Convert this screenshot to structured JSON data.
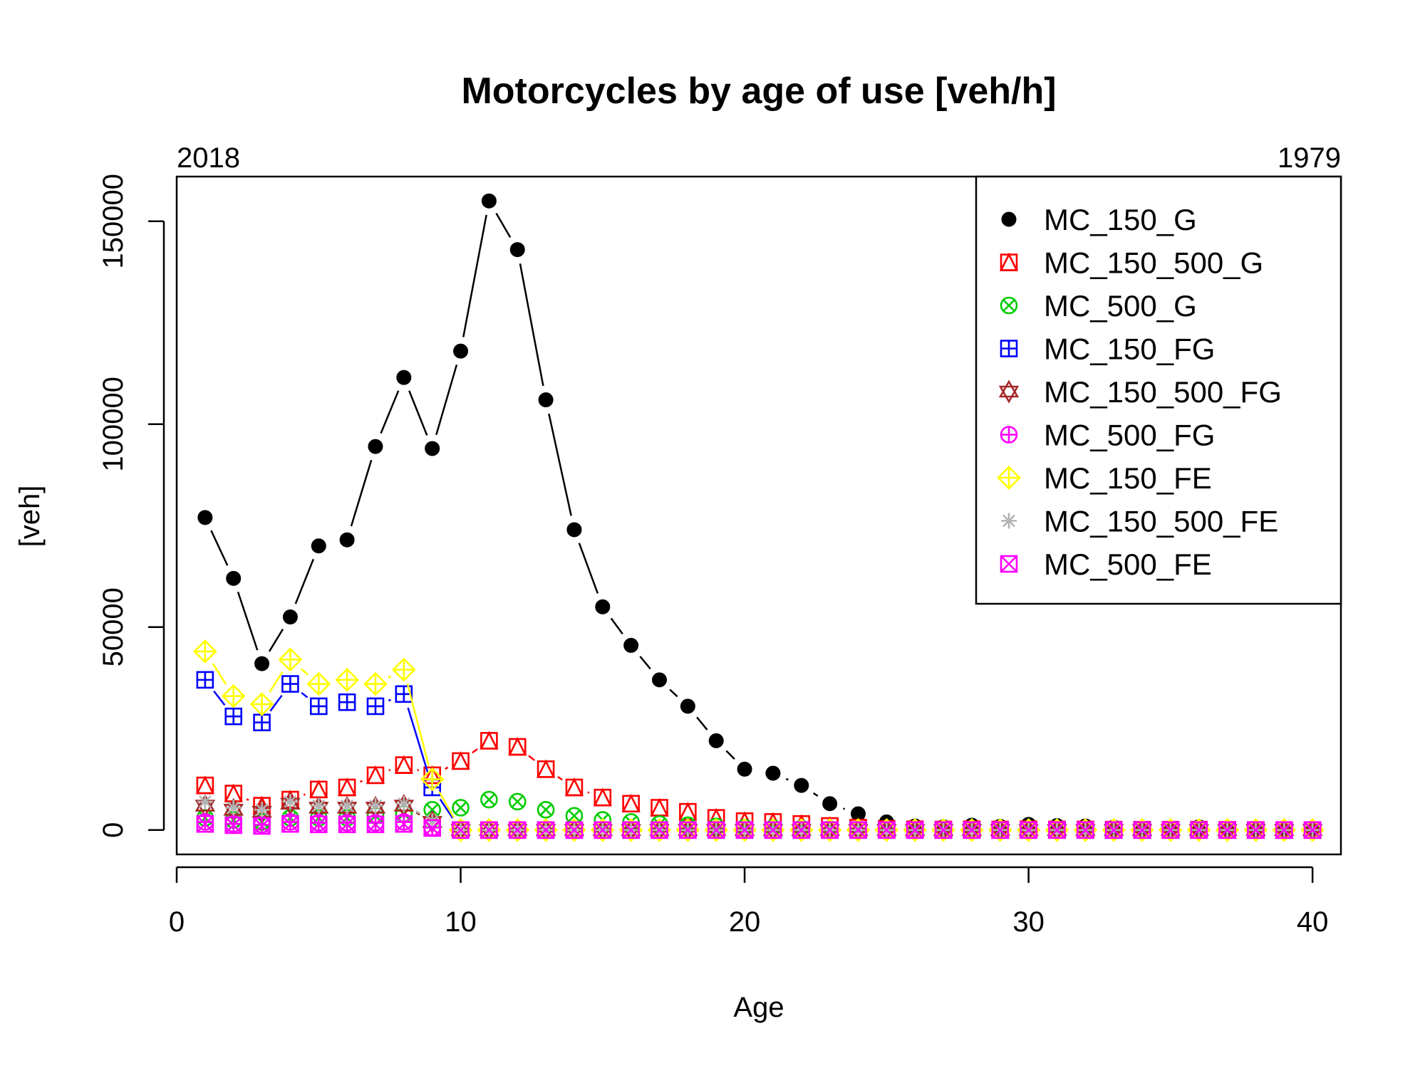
{
  "chart_data": {
    "type": "scatter",
    "title": "Motorcycles by age of use [veh/h]",
    "xlabel": "Age",
    "ylabel": "[veh]",
    "top_left_label": "2018",
    "top_right_label": "1979",
    "xlim": [
      0,
      41
    ],
    "ylim": [
      -6000,
      161000
    ],
    "xticks": [
      0,
      10,
      20,
      30,
      40
    ],
    "yticks": [
      0,
      50000,
      100000,
      150000
    ],
    "legend_position": "top-right",
    "x": [
      1,
      2,
      3,
      4,
      5,
      6,
      7,
      8,
      9,
      10,
      11,
      12,
      13,
      14,
      15,
      16,
      17,
      18,
      19,
      20,
      21,
      22,
      23,
      24,
      25,
      26,
      27,
      28,
      29,
      30,
      31,
      32,
      33,
      34,
      35,
      36,
      37,
      38,
      39,
      40
    ],
    "series": [
      {
        "name": "MC_150_G",
        "color": "#000000",
        "marker": "filled-circle",
        "values": [
          77000,
          62000,
          41000,
          52500,
          70000,
          71500,
          94500,
          111500,
          94000,
          118000,
          155000,
          143000,
          106000,
          74000,
          55000,
          45500,
          37000,
          30500,
          22000,
          15000,
          14000,
          11000,
          6500,
          4000,
          2000,
          1000,
          800,
          1200,
          900,
          1400,
          1100,
          1000,
          700,
          500,
          600,
          800,
          300,
          200,
          100,
          50
        ]
      },
      {
        "name": "MC_150_500_G",
        "color": "#ff0000",
        "marker": "triangle-square",
        "values": [
          11000,
          9000,
          6000,
          7500,
          10000,
          10500,
          13500,
          16000,
          13500,
          17000,
          22000,
          20500,
          15000,
          10500,
          8000,
          6500,
          5500,
          4500,
          3000,
          2200,
          2000,
          1500,
          1000,
          600,
          300,
          200,
          150,
          200,
          150,
          200,
          150,
          150,
          100,
          80,
          80,
          100,
          50,
          30,
          20,
          10
        ]
      },
      {
        "name": "MC_500_G",
        "color": "#00cc00",
        "marker": "circle-x",
        "values": [
          3000,
          2500,
          2000,
          3000,
          3000,
          3000,
          3500,
          4000,
          5000,
          5500,
          7500,
          7000,
          5000,
          3500,
          2500,
          2000,
          1500,
          1200,
          900,
          600,
          500,
          400,
          300,
          200,
          100,
          80,
          60,
          80,
          60,
          80,
          60,
          60,
          40,
          30,
          30,
          40,
          20,
          10,
          5,
          5
        ]
      },
      {
        "name": "MC_150_FG",
        "color": "#0000ff",
        "marker": "square-plus",
        "values": [
          37000,
          28000,
          26500,
          36000,
          30500,
          31500,
          30500,
          33500,
          10500,
          0,
          0,
          0,
          0,
          0,
          0,
          0,
          0,
          0,
          0,
          0,
          0,
          0,
          0,
          0,
          0,
          0,
          0,
          0,
          0,
          0,
          0,
          0,
          0,
          0,
          0,
          0,
          0,
          0,
          0,
          0
        ]
      },
      {
        "name": "MC_150_500_FG",
        "color": "#a52a2a",
        "marker": "star-of-david",
        "values": [
          6000,
          5000,
          4500,
          6500,
          5500,
          5500,
          5500,
          6000,
          2000,
          0,
          0,
          0,
          0,
          0,
          0,
          0,
          0,
          0,
          0,
          0,
          0,
          0,
          0,
          0,
          0,
          0,
          0,
          0,
          0,
          0,
          0,
          0,
          0,
          0,
          0,
          0,
          0,
          0,
          0,
          0
        ]
      },
      {
        "name": "MC_500_FG",
        "color": "#ff00ff",
        "marker": "circle-plus",
        "values": [
          2000,
          1500,
          1300,
          2000,
          1800,
          1800,
          1800,
          2000,
          600,
          0,
          0,
          0,
          0,
          0,
          0,
          0,
          0,
          0,
          0,
          0,
          0,
          0,
          0,
          0,
          0,
          0,
          0,
          0,
          0,
          0,
          0,
          0,
          0,
          0,
          0,
          0,
          0,
          0,
          0,
          0
        ]
      },
      {
        "name": "MC_150_FE",
        "color": "#ffff00",
        "marker": "diamond-plus",
        "values": [
          44000,
          33000,
          31000,
          42000,
          36000,
          37000,
          36000,
          39500,
          12500,
          0,
          0,
          0,
          0,
          0,
          0,
          0,
          0,
          0,
          0,
          0,
          0,
          0,
          0,
          0,
          0,
          0,
          0,
          0,
          0,
          0,
          0,
          0,
          0,
          0,
          0,
          0,
          0,
          0,
          0,
          0
        ]
      },
      {
        "name": "MC_150_500_FE",
        "color": "#b3b3b3",
        "marker": "asterisk",
        "values": [
          7000,
          5500,
          5000,
          7000,
          6000,
          6000,
          6000,
          6500,
          2200,
          0,
          0,
          0,
          0,
          0,
          0,
          0,
          0,
          0,
          0,
          0,
          0,
          0,
          0,
          0,
          0,
          0,
          0,
          0,
          0,
          0,
          0,
          0,
          0,
          0,
          0,
          0,
          0,
          0,
          0,
          0
        ]
      },
      {
        "name": "MC_500_FE",
        "color": "#ff00ff",
        "marker": "square-x",
        "values": [
          1500,
          1200,
          1000,
          1500,
          1400,
          1400,
          1400,
          1500,
          500,
          0,
          0,
          0,
          0,
          0,
          0,
          0,
          0,
          0,
          0,
          0,
          0,
          0,
          0,
          0,
          0,
          0,
          0,
          0,
          0,
          0,
          0,
          0,
          0,
          0,
          0,
          0,
          0,
          0,
          0,
          0
        ]
      }
    ]
  }
}
